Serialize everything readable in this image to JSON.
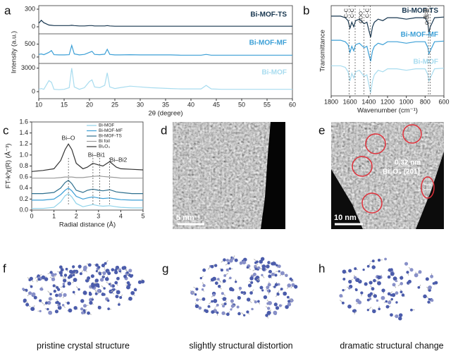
{
  "panel_labels": [
    "a",
    "b",
    "c",
    "d",
    "e",
    "f",
    "g",
    "h"
  ],
  "chart_data": [
    {
      "type": "line",
      "x_label": "2θ (degree)",
      "y_label": "Intensity (a.u.)",
      "xlim": [
        10,
        60
      ],
      "xticks": [
        10,
        15,
        20,
        25,
        30,
        35,
        40,
        45,
        50,
        55,
        60
      ],
      "x": [
        10,
        10.5,
        11,
        12,
        12.5,
        13,
        14,
        15,
        16,
        16.5,
        17,
        18,
        19,
        20,
        20.5,
        21,
        22,
        23,
        23.5,
        24,
        25,
        26,
        28,
        30,
        32,
        34,
        36,
        38,
        40,
        42,
        43,
        44,
        46,
        50,
        55,
        60
      ],
      "series": [
        {
          "name": "Bi-MOF-TS",
          "color": "#17364f",
          "ylim": [
            -120,
            360
          ],
          "yticks": [
            0,
            300
          ],
          "values": [
            60,
            110,
            70,
            30,
            25,
            20,
            20,
            20,
            20,
            25,
            20,
            15,
            15,
            20,
            20,
            15,
            15,
            15,
            20,
            15,
            10,
            10,
            10,
            10,
            10,
            10,
            10,
            10,
            10,
            10,
            10,
            10,
            10,
            10,
            10,
            10
          ]
        },
        {
          "name": "Bi-MOF-MF",
          "color": "#3b9fd6",
          "ylim": [
            -250,
            900
          ],
          "yticks": [
            0,
            500
          ],
          "values": [
            100,
            120,
            90,
            180,
            250,
            90,
            80,
            80,
            90,
            450,
            120,
            80,
            100,
            180,
            220,
            100,
            90,
            110,
            300,
            100,
            80,
            80,
            90,
            80,
            80,
            80,
            80,
            70,
            70,
            70,
            100,
            70,
            70,
            70,
            70,
            70
          ]
        },
        {
          "name": "Bi-MOF",
          "color": "#a8dcef",
          "ylim": [
            -900,
            3600
          ],
          "yticks": [
            0,
            3000
          ],
          "values": [
            300,
            400,
            300,
            1400,
            1200,
            300,
            250,
            300,
            500,
            3000,
            600,
            300,
            500,
            1300,
            1500,
            600,
            500,
            800,
            2400,
            600,
            400,
            500,
            700,
            600,
            500,
            450,
            400,
            350,
            350,
            350,
            800,
            350,
            300,
            300,
            300,
            300
          ]
        }
      ]
    },
    {
      "type": "line",
      "x_label": "Wavenumber (cm⁻¹)",
      "y_label": "Transmittance",
      "xlim": [
        1800,
        600
      ],
      "xticks": [
        1800,
        1600,
        1400,
        1200,
        1000,
        800,
        600
      ],
      "ylim": [
        0,
        3
      ],
      "x": [
        1800,
        1700,
        1650,
        1620,
        1600,
        1580,
        1560,
        1540,
        1500,
        1450,
        1420,
        1400,
        1380,
        1360,
        1340,
        1300,
        1250,
        1200,
        1100,
        1000,
        900,
        850,
        800,
        770,
        760,
        745,
        700,
        600
      ],
      "series": [
        {
          "name": "Bi-MOF-TS",
          "color": "#17364f",
          "values": [
            2.65,
            2.65,
            2.6,
            2.5,
            2.25,
            2.45,
            2.3,
            2.5,
            2.55,
            2.4,
            2.45,
            2.2,
            1.95,
            2.3,
            2.45,
            2.55,
            2.5,
            2.6,
            2.6,
            2.55,
            2.6,
            2.6,
            2.6,
            2.4,
            2.1,
            2.3,
            2.6,
            2.62
          ]
        },
        {
          "name": "Bi-MOF-MF",
          "color": "#3b9fd6",
          "values": [
            1.85,
            1.85,
            1.8,
            1.7,
            1.45,
            1.65,
            1.5,
            1.7,
            1.75,
            1.6,
            1.65,
            1.4,
            1.15,
            1.5,
            1.65,
            1.75,
            1.7,
            1.8,
            1.8,
            1.75,
            1.8,
            1.8,
            1.8,
            1.6,
            1.4,
            1.5,
            1.8,
            1.82
          ]
        },
        {
          "name": "Bi-MOF",
          "color": "#a8dcef",
          "values": [
            1.0,
            1.0,
            0.95,
            0.8,
            0.5,
            0.75,
            0.6,
            0.8,
            0.85,
            0.65,
            0.7,
            0.4,
            0.1,
            0.5,
            0.7,
            0.85,
            0.8,
            0.9,
            0.9,
            0.85,
            0.9,
            0.9,
            0.9,
            0.7,
            0.5,
            0.6,
            0.9,
            0.92
          ]
        }
      ],
      "reference_lines": [
        1610,
        1545,
        1450,
        1385,
        765,
        745
      ],
      "annotations": [
        "C-C",
        "C-C",
        "COO⁻",
        "C-C",
        "Bi-O",
        "O-Bi-O"
      ]
    },
    {
      "type": "line",
      "x_label": "Radial distance (Å)",
      "y_label": "FT-k³χ(R) (Å⁻³)",
      "xlim": [
        0,
        5
      ],
      "xticks": [
        0,
        1,
        2,
        3,
        4,
        5
      ],
      "ylim": [
        0,
        1.6
      ],
      "yticks": [
        {
          "value": 0,
          "label": "0.0"
        },
        0.2,
        0.4,
        0.6,
        0.8,
        {
          "value": 1,
          "label": "1.0"
        },
        1.2,
        1.4,
        1.6
      ],
      "legend": "upper right",
      "x": [
        0,
        0.5,
        1,
        1.3,
        1.5,
        1.65,
        1.8,
        2,
        2.3,
        2.5,
        2.75,
        3,
        3.2,
        3.5,
        3.8,
        4,
        4.5,
        5
      ],
      "series": [
        {
          "name": "Bi-MOF",
          "color": "#8fd3ea",
          "values": [
            0.03,
            0.03,
            0.05,
            0.15,
            0.26,
            0.3,
            0.24,
            0.12,
            0.06,
            0.08,
            0.1,
            0.08,
            0.07,
            0.08,
            0.06,
            0.05,
            0.04,
            0.04
          ]
        },
        {
          "name": "Bi-MOF-MF",
          "color": "#3b9fd6",
          "values": [
            0.18,
            0.18,
            0.2,
            0.28,
            0.36,
            0.4,
            0.35,
            0.25,
            0.2,
            0.22,
            0.24,
            0.22,
            0.21,
            0.22,
            0.2,
            0.19,
            0.18,
            0.18
          ]
        },
        {
          "name": "Bi-MOF-TS",
          "color": "#2e6f8e",
          "values": [
            0.3,
            0.3,
            0.32,
            0.4,
            0.5,
            0.54,
            0.48,
            0.36,
            0.32,
            0.36,
            0.38,
            0.36,
            0.35,
            0.37,
            0.33,
            0.32,
            0.3,
            0.3
          ]
        },
        {
          "name": "Bi foil",
          "color": "#9a9a9a",
          "values": [
            0.58,
            0.58,
            0.58,
            0.59,
            0.6,
            0.6,
            0.6,
            0.59,
            0.59,
            0.6,
            0.61,
            0.62,
            0.61,
            0.6,
            0.59,
            0.58,
            0.58,
            0.58
          ]
        },
        {
          "name": "Bi₂O₃",
          "color": "#333333",
          "values": [
            0.7,
            0.72,
            0.75,
            0.9,
            1.1,
            1.2,
            1.1,
            0.85,
            0.75,
            0.78,
            0.85,
            0.82,
            0.8,
            0.88,
            0.78,
            0.75,
            0.74,
            0.73
          ]
        }
      ],
      "reference_lines": [
        1.65,
        2.75,
        3.05,
        3.5
      ],
      "annotations": [
        "Bi–O",
        "Bi–Bi1",
        "Bi–Bi2"
      ]
    }
  ],
  "micrographs": [
    {
      "scale_bar": "5 nm"
    },
    {
      "scale_bar": "10 nm",
      "annotations": [
        "0.32 nm",
        "Bi₂O₃ (201)"
      ]
    }
  ],
  "structures": [
    {
      "caption": "pristine crystal structure"
    },
    {
      "caption": "slightly structural distortion"
    },
    {
      "caption": "dramatic structural change"
    }
  ]
}
